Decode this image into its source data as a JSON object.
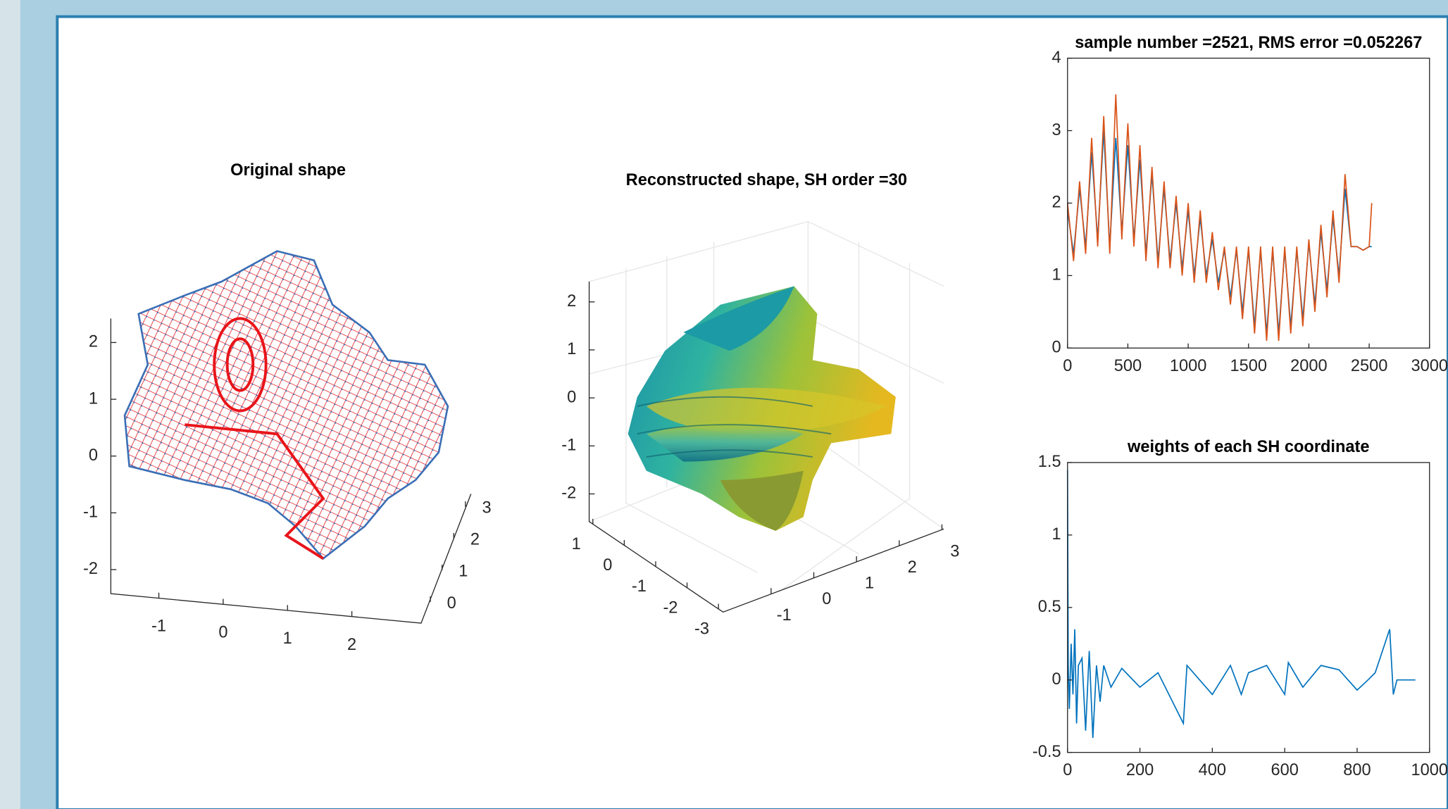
{
  "chart_data": [
    {
      "type": "mesh3d",
      "title": "Original shape",
      "zticks": [
        -2,
        -1,
        0,
        1,
        2
      ],
      "xticks": [
        -1,
        0,
        1,
        2
      ],
      "yticks": [
        0,
        1,
        2,
        3
      ],
      "colors": [
        "#e8151b",
        "#3b6fb6"
      ]
    },
    {
      "type": "surface3d",
      "title": "Reconstructed shape, SH order =30",
      "zticks": [
        -2,
        -1,
        0,
        1,
        2
      ],
      "xticks": [
        -3,
        -2,
        -1,
        0,
        1
      ],
      "yticks": [
        -1,
        0,
        1,
        2,
        3
      ],
      "grid": true
    },
    {
      "type": "line",
      "title": "sample number =2521, RMS error =0.052267",
      "x": [
        0,
        50,
        100,
        150,
        200,
        250,
        300,
        350,
        400,
        450,
        500,
        550,
        600,
        650,
        700,
        750,
        800,
        850,
        900,
        950,
        1000,
        1050,
        1100,
        1150,
        1200,
        1250,
        1300,
        1350,
        1400,
        1450,
        1500,
        1550,
        1600,
        1650,
        1700,
        1750,
        1800,
        1850,
        1900,
        1950,
        2000,
        2050,
        2100,
        2150,
        2200,
        2250,
        2300,
        2350,
        2400,
        2450,
        2500,
        2521
      ],
      "series": [
        {
          "color": "#0072bd",
          "values": [
            1.9,
            1.3,
            2.2,
            1.4,
            2.7,
            1.5,
            3.0,
            1.4,
            2.9,
            1.6,
            2.8,
            1.5,
            2.6,
            1.3,
            2.4,
            1.2,
            2.2,
            1.2,
            2.0,
            1.1,
            1.9,
            1.0,
            1.8,
            1.0,
            1.5,
            0.9,
            1.35,
            0.7,
            1.35,
            0.5,
            1.35,
            0.3,
            1.35,
            0.2,
            1.35,
            0.2,
            1.35,
            0.3,
            1.35,
            0.4,
            1.45,
            0.6,
            1.6,
            0.8,
            1.8,
            1.0,
            2.2,
            1.4,
            1.4,
            1.35,
            1.4,
            1.4
          ]
        },
        {
          "color": "#d95319",
          "values": [
            2.0,
            1.2,
            2.3,
            1.3,
            2.9,
            1.4,
            3.2,
            1.3,
            3.5,
            1.5,
            3.1,
            1.4,
            2.8,
            1.2,
            2.5,
            1.1,
            2.3,
            1.1,
            2.1,
            1.0,
            2.0,
            0.9,
            1.9,
            0.9,
            1.6,
            0.8,
            1.4,
            0.6,
            1.4,
            0.4,
            1.4,
            0.2,
            1.4,
            0.1,
            1.4,
            0.1,
            1.4,
            0.2,
            1.4,
            0.3,
            1.5,
            0.5,
            1.7,
            0.7,
            1.9,
            0.9,
            2.4,
            1.4,
            1.4,
            1.35,
            1.4,
            2.0
          ]
        }
      ],
      "xlim": [
        0,
        3000
      ],
      "ylim": [
        0,
        4
      ],
      "xticks": [
        0,
        500,
        1000,
        1500,
        2000,
        2500,
        3000
      ],
      "yticks": [
        0,
        1,
        2,
        3,
        4
      ]
    },
    {
      "type": "line",
      "title": "weights of each SH coordinate",
      "x": [
        0,
        2,
        5,
        10,
        15,
        20,
        25,
        30,
        40,
        50,
        60,
        70,
        80,
        90,
        100,
        120,
        150,
        200,
        250,
        320,
        330,
        400,
        450,
        480,
        500,
        550,
        600,
        610,
        650,
        700,
        750,
        800,
        830,
        850,
        890,
        900,
        910,
        961
      ],
      "series": [
        {
          "color": "#0072bd",
          "values": [
            1.45,
            0.1,
            -0.2,
            0.25,
            -0.1,
            0.35,
            -0.3,
            0.1,
            0.15,
            -0.35,
            0.2,
            -0.4,
            0.1,
            -0.15,
            0.1,
            -0.05,
            0.08,
            -0.05,
            0.05,
            -0.3,
            0.1,
            -0.1,
            0.1,
            -0.1,
            0.05,
            0.1,
            -0.1,
            0.12,
            -0.05,
            0.1,
            0.07,
            -0.07,
            0,
            0.05,
            0.35,
            -0.1,
            0,
            0
          ]
        }
      ],
      "xlim": [
        0,
        1000
      ],
      "ylim": [
        -0.5,
        1.5
      ],
      "xticks": [
        0,
        200,
        400,
        600,
        800,
        1000
      ],
      "yticks": [
        -0.5,
        0,
        0.5,
        1,
        1.5
      ]
    }
  ]
}
